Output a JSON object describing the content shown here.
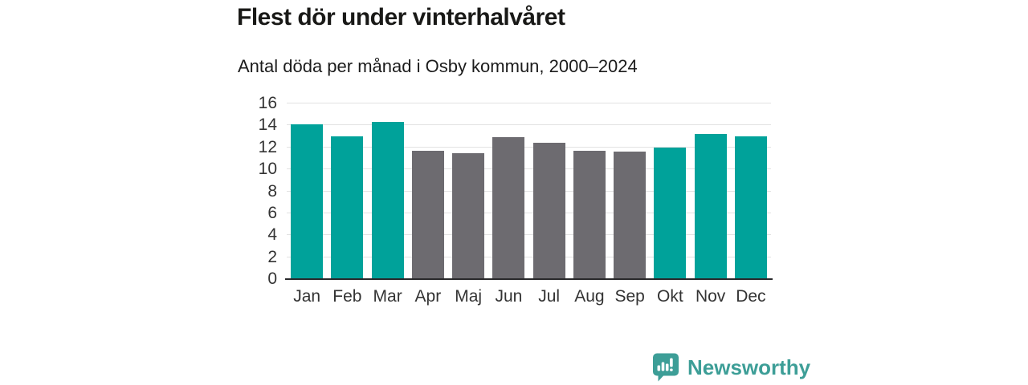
{
  "title": "Flest dör under vinterhalvåret",
  "subtitle": "Antal döda per månad i Osby kommun, 2000–2024",
  "chart_data": {
    "type": "bar",
    "title": "Flest dör under vinterhalvåret",
    "subtitle": "Antal döda per månad i Osby kommun, 2000–2024",
    "categories": [
      "Jan",
      "Feb",
      "Mar",
      "Apr",
      "Maj",
      "Jun",
      "Jul",
      "Aug",
      "Sep",
      "Okt",
      "Nov",
      "Dec"
    ],
    "values": [
      14.1,
      13.0,
      14.3,
      11.7,
      11.5,
      12.9,
      12.4,
      11.7,
      11.6,
      12.0,
      13.2,
      13.0
    ],
    "bar_colors": [
      "#00a29a",
      "#00a29a",
      "#00a29a",
      "#6d6b70",
      "#6d6b70",
      "#6d6b70",
      "#6d6b70",
      "#6d6b70",
      "#6d6b70",
      "#00a29a",
      "#00a29a",
      "#00a29a"
    ],
    "xlabel": "",
    "ylabel": "",
    "ylim": [
      0,
      16
    ],
    "ytick_step": 2,
    "grid": true,
    "legend": "none",
    "palette": {
      "highlight": "#00a29a",
      "base": "#6d6b70"
    }
  },
  "branding": {
    "logo_text": "Newsworthy",
    "logo_color": "#3d9e97"
  }
}
